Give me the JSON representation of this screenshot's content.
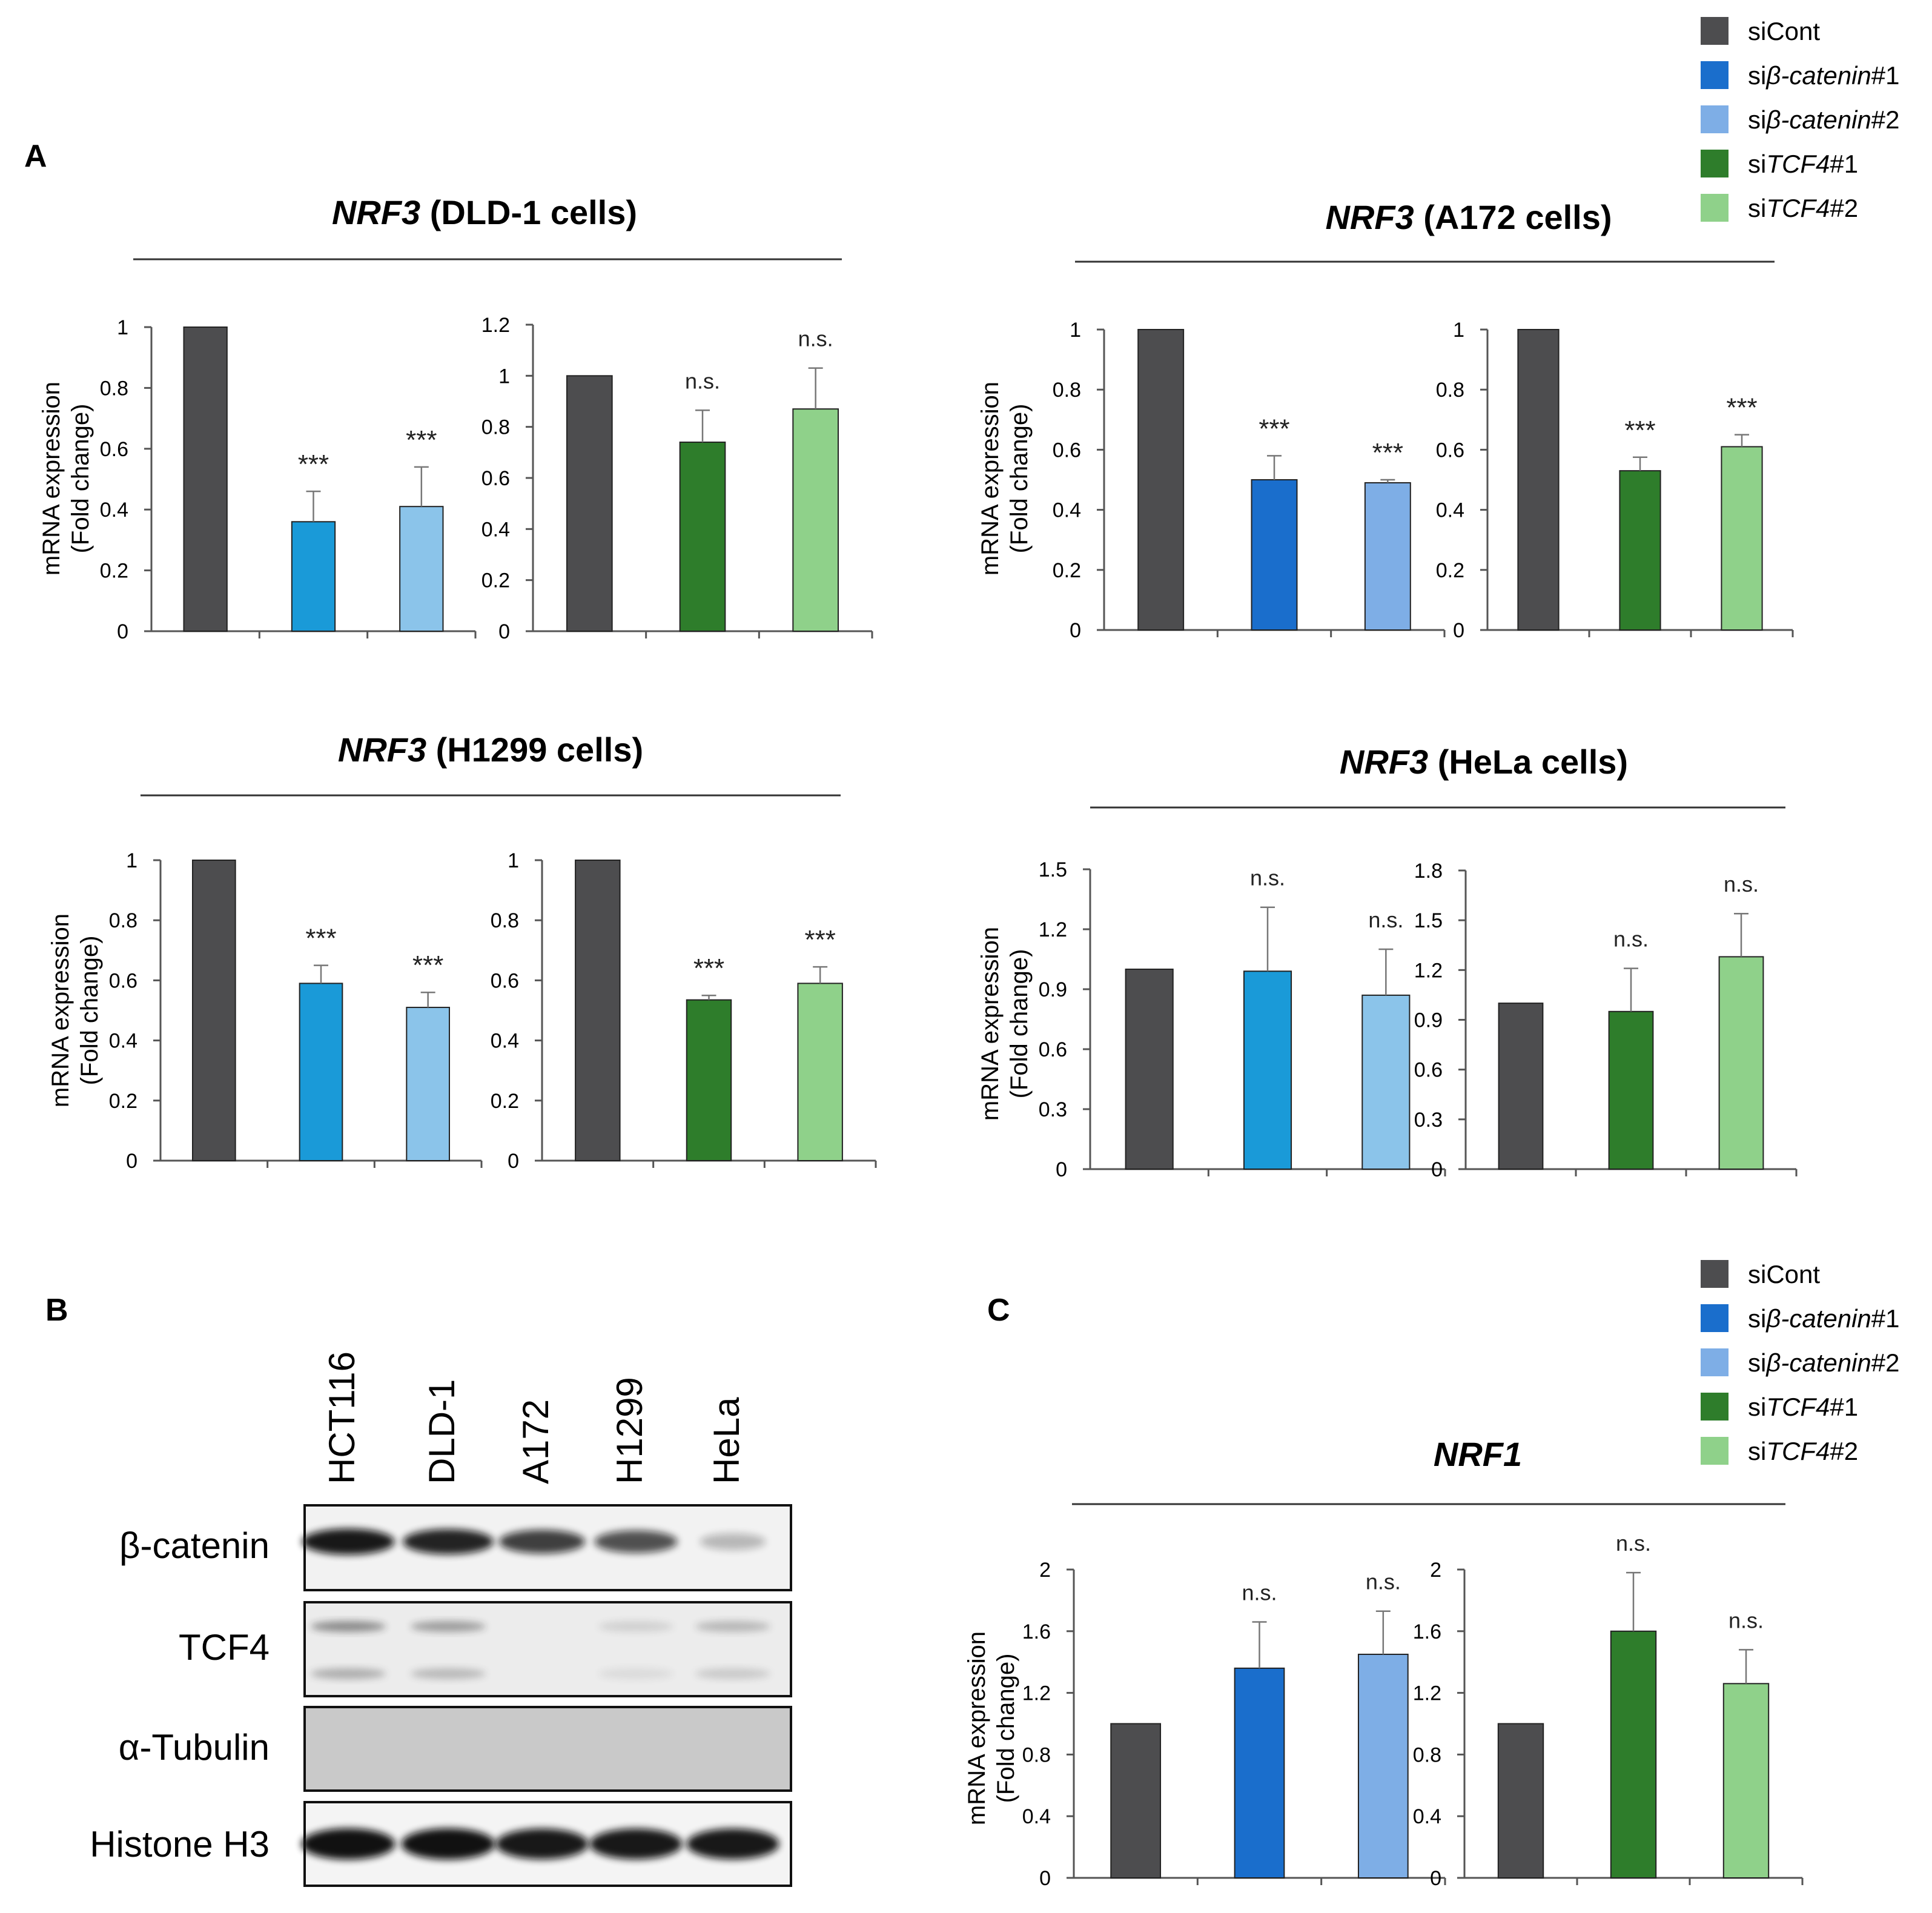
{
  "panel_labels": {
    "a": "A",
    "b": "B",
    "c": "C"
  },
  "colors": {
    "siCont": "#4d4d4f",
    "sibcat1": "#1a6ecc",
    "sibcat2": "#7eaee6",
    "sibcat1_light": "#1a9ad8",
    "sibcat2_light": "#8bc4ea",
    "siTCF4_1": "#2e7d2b",
    "siTCF4_2": "#8fd18a"
  },
  "legends": [
    {
      "items": [
        {
          "prefix": "si",
          "italic": "",
          "suffix": "Cont",
          "color": "#4d4d4f"
        },
        {
          "prefix": "si",
          "italic": "β-catenin",
          "suffix": "#1",
          "color": "#1a6ecc"
        },
        {
          "prefix": "si",
          "italic": "β-catenin",
          "suffix": "#2",
          "color": "#7eaee6"
        },
        {
          "prefix": "si",
          "italic": "TCF4",
          "suffix": "#1",
          "color": "#2e7d2b"
        },
        {
          "prefix": "si",
          "italic": "TCF4",
          "suffix": "#2",
          "color": "#8fd18a"
        }
      ]
    },
    {
      "items": [
        {
          "prefix": "si",
          "italic": "",
          "suffix": "Cont",
          "color": "#4d4d4f"
        },
        {
          "prefix": "si",
          "italic": "β-catenin",
          "suffix": "#1",
          "color": "#1a6ecc"
        },
        {
          "prefix": "si",
          "italic": "β-catenin",
          "suffix": "#2",
          "color": "#7eaee6"
        },
        {
          "prefix": "si",
          "italic": "TCF4",
          "suffix": "#1",
          "color": "#2e7d2b"
        },
        {
          "prefix": "si",
          "italic": "TCF4",
          "suffix": "#2",
          "color": "#8fd18a"
        }
      ]
    }
  ],
  "chart_groups": [
    {
      "title_gene": "NRF3",
      "title_rest": " (DLD-1 cells)"
    },
    {
      "title_gene": "NRF3",
      "title_rest": " (A172 cells)"
    },
    {
      "title_gene": "NRF3",
      "title_rest": " (H1299 cells)"
    },
    {
      "title_gene": "NRF3",
      "title_rest": " (HeLa cells)"
    },
    {
      "title_gene": "NRF1",
      "title_rest": ""
    }
  ],
  "ylabel_line1": "mRNA expression",
  "ylabel_line2": "(Fold change)",
  "chart_data": [
    {
      "type": "bar",
      "group": "NRF3 (DLD-1 cells)",
      "ylabel": "mRNA expression (Fold change)",
      "ylim": [
        0,
        1
      ],
      "yticks": [
        0,
        0.2,
        0.4,
        0.6,
        0.8,
        1
      ],
      "categories": [
        "siCont",
        "siβ-catenin#1",
        "siβ-catenin#2"
      ],
      "values": [
        1,
        0.36,
        0.41
      ],
      "errors": [
        0,
        0.1,
        0.13
      ],
      "annotations": [
        "",
        "***",
        "***"
      ],
      "colors": [
        "#4d4d4f",
        "#1a9ad8",
        "#8bc4ea"
      ]
    },
    {
      "type": "bar",
      "group": "NRF3 (DLD-1 cells)",
      "ylim": [
        0,
        1.2
      ],
      "yticks": [
        0,
        0.2,
        0.4,
        0.6,
        0.8,
        1,
        1.2
      ],
      "categories": [
        "siCont",
        "siTCF4#1",
        "siTCF4#2"
      ],
      "values": [
        1,
        0.74,
        0.87
      ],
      "errors": [
        0,
        0.125,
        0.16
      ],
      "annotations": [
        "",
        "n.s.",
        "n.s."
      ],
      "colors": [
        "#4d4d4f",
        "#2e7d2b",
        "#8fd18a"
      ]
    },
    {
      "type": "bar",
      "group": "NRF3 (A172 cells)",
      "ylabel": "mRNA expression (Fold change)",
      "ylim": [
        0,
        1
      ],
      "yticks": [
        0,
        0.2,
        0.4,
        0.6,
        0.8,
        1
      ],
      "categories": [
        "siCont",
        "siβ-catenin#1",
        "siβ-catenin#2"
      ],
      "values": [
        1,
        0.5,
        0.49
      ],
      "errors": [
        0,
        0.08,
        0.01
      ],
      "annotations": [
        "",
        "***",
        "***"
      ],
      "colors": [
        "#4d4d4f",
        "#1a6ecc",
        "#7eaee6"
      ]
    },
    {
      "type": "bar",
      "group": "NRF3 (A172 cells)",
      "ylim": [
        0,
        1
      ],
      "yticks": [
        0,
        0.2,
        0.4,
        0.6,
        0.8,
        1
      ],
      "categories": [
        "siCont",
        "siTCF4#1",
        "siTCF4#2"
      ],
      "values": [
        1,
        0.53,
        0.61
      ],
      "errors": [
        0,
        0.045,
        0.04
      ],
      "annotations": [
        "",
        "***",
        "***"
      ],
      "colors": [
        "#4d4d4f",
        "#2e7d2b",
        "#8fd18a"
      ]
    },
    {
      "type": "bar",
      "group": "NRF3 (H1299 cells)",
      "ylabel": "mRNA expression (Fold change)",
      "ylim": [
        0,
        1
      ],
      "yticks": [
        0,
        0.2,
        0.4,
        0.6,
        0.8,
        1
      ],
      "categories": [
        "siCont",
        "siβ-catenin#1",
        "siβ-catenin#2"
      ],
      "values": [
        1,
        0.59,
        0.51
      ],
      "errors": [
        0,
        0.06,
        0.05
      ],
      "annotations": [
        "",
        "***",
        "***"
      ],
      "colors": [
        "#4d4d4f",
        "#1a9ad8",
        "#8bc4ea"
      ]
    },
    {
      "type": "bar",
      "group": "NRF3 (H1299 cells)",
      "ylim": [
        0,
        1
      ],
      "yticks": [
        0,
        0.2,
        0.4,
        0.6,
        0.8,
        1
      ],
      "categories": [
        "siCont",
        "siTCF4#1",
        "siTCF4#2"
      ],
      "values": [
        1,
        0.535,
        0.59
      ],
      "errors": [
        0,
        0.015,
        0.055
      ],
      "annotations": [
        "",
        "***",
        "***"
      ],
      "colors": [
        "#4d4d4f",
        "#2e7d2b",
        "#8fd18a"
      ]
    },
    {
      "type": "bar",
      "group": "NRF3 (HeLa cells)",
      "ylabel": "mRNA expression (Fold change)",
      "ylim": [
        0,
        1.5
      ],
      "yticks": [
        0,
        0.3,
        0.6,
        0.9,
        1.2,
        1.5
      ],
      "categories": [
        "siCont",
        "siβ-catenin#1",
        "siβ-catenin#2"
      ],
      "values": [
        1,
        0.99,
        0.87
      ],
      "errors": [
        0,
        0.32,
        0.23
      ],
      "annotations": [
        "",
        "n.s.",
        "n.s."
      ],
      "colors": [
        "#4d4d4f",
        "#1a9ad8",
        "#8bc4ea"
      ]
    },
    {
      "type": "bar",
      "group": "NRF3 (HeLa cells)",
      "ylim": [
        0,
        1.8
      ],
      "yticks": [
        0,
        0.3,
        0.6,
        0.9,
        1.2,
        1.5,
        1.8
      ],
      "categories": [
        "siCont",
        "siTCF4#1",
        "siTCF4#2"
      ],
      "values": [
        1,
        0.95,
        1.28
      ],
      "errors": [
        0,
        0.26,
        0.26
      ],
      "annotations": [
        "",
        "n.s.",
        "n.s."
      ],
      "colors": [
        "#4d4d4f",
        "#2e7d2b",
        "#8fd18a"
      ]
    },
    {
      "type": "bar",
      "group": "NRF1",
      "ylabel": "mRNA expression (Fold change)",
      "ylim": [
        0,
        2
      ],
      "yticks": [
        0,
        0.4,
        0.8,
        1.2,
        1.6,
        2
      ],
      "categories": [
        "siCont",
        "siβ-catenin#1",
        "siβ-catenin#2"
      ],
      "values": [
        1,
        1.36,
        1.45
      ],
      "errors": [
        0,
        0.3,
        0.28
      ],
      "annotations": [
        "",
        "n.s.",
        "n.s."
      ],
      "colors": [
        "#4d4d4f",
        "#1a6ecc",
        "#7eaee6"
      ]
    },
    {
      "type": "bar",
      "group": "NRF1",
      "ylim": [
        0,
        2
      ],
      "yticks": [
        0,
        0.4,
        0.8,
        1.2,
        1.6,
        2
      ],
      "categories": [
        "siCont",
        "siTCF4#1",
        "siTCF4#2"
      ],
      "values": [
        1,
        1.6,
        1.26
      ],
      "errors": [
        0,
        0.38,
        0.22
      ],
      "annotations": [
        "",
        "n.s.",
        "n.s."
      ],
      "colors": [
        "#4d4d4f",
        "#2e7d2b",
        "#8fd18a"
      ]
    }
  ],
  "western_blot": {
    "lanes": [
      "HCT116",
      "DLD-1",
      "A172",
      "H1299",
      "HeLa"
    ],
    "rows": [
      {
        "label": "β-catenin",
        "intensities": [
          0.95,
          0.9,
          0.78,
          0.7,
          0.25
        ]
      },
      {
        "label": "TCF4",
        "intensities": [
          0.55,
          0.45,
          0.0,
          0.15,
          0.3
        ]
      },
      {
        "label": "α-Tubulin",
        "intensities": [
          0,
          0,
          0,
          0,
          0
        ]
      },
      {
        "label": "Histone H3",
        "intensities": [
          0.98,
          0.98,
          0.95,
          0.95,
          0.95
        ]
      }
    ]
  }
}
